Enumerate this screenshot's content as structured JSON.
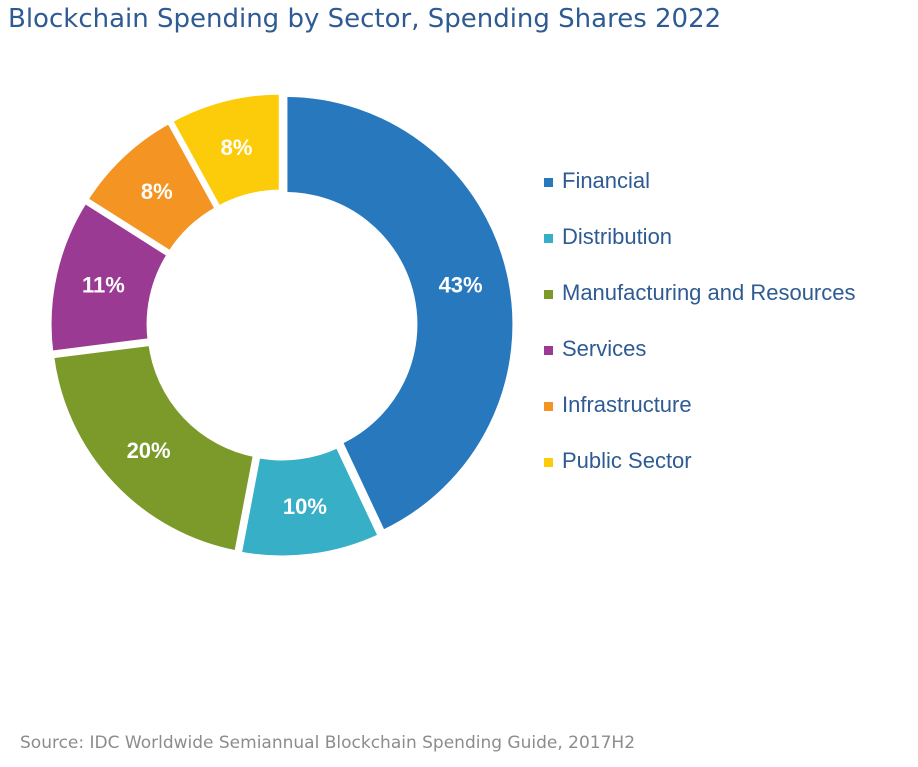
{
  "chart_data": {
    "type": "pie",
    "title": "Blockchain Spending by Sector, Spending Shares 2022",
    "source": "Source: IDC Worldwide Semiannual Blockchain Spending Guide, 2017H2",
    "donut": true,
    "legend_position": "right",
    "slices": [
      {
        "label": "Financial",
        "value": 43,
        "value_label": "43%",
        "color": "#2878be"
      },
      {
        "label": "Distribution",
        "value": 10,
        "value_label": "10%",
        "color": "#36afc7"
      },
      {
        "label": "Manufacturing and Resources",
        "value": 20,
        "value_label": "20%",
        "color": "#7b9a2a"
      },
      {
        "label": "Services",
        "value": 11,
        "value_label": "11%",
        "color": "#9b3a93"
      },
      {
        "label": "Infrastructure",
        "value": 8,
        "value_label": "8%",
        "color": "#f39423"
      },
      {
        "label": "Public Sector",
        "value": 8,
        "value_label": "8%",
        "color": "#fccc0a"
      }
    ]
  }
}
